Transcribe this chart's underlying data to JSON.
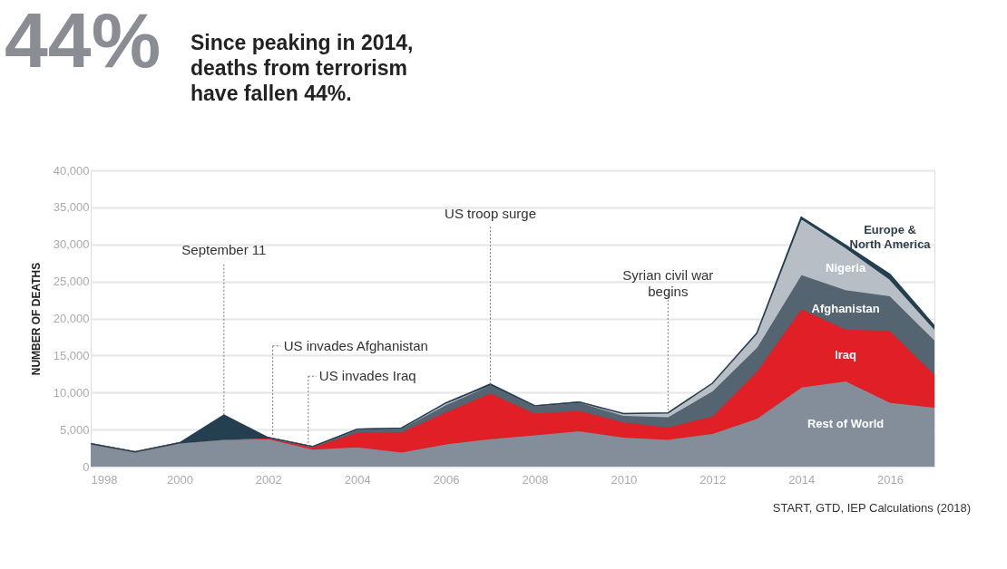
{
  "chart_data": {
    "type": "area",
    "stacked": true,
    "title": "44%",
    "subtitle": "Since peaking in 2014, deaths from terrorism have fallen 44%.",
    "ylabel": "NUMBER OF DEATHS",
    "x": [
      1998,
      1999,
      2000,
      2001,
      2002,
      2003,
      2004,
      2005,
      2006,
      2007,
      2008,
      2009,
      2010,
      2011,
      2012,
      2013,
      2014,
      2015,
      2016,
      2017
    ],
    "series": [
      {
        "name": "Rest of World",
        "color": "#838e9a",
        "values": [
          3100,
          2000,
          3200,
          3700,
          3800,
          2400,
          2700,
          2000,
          3100,
          3800,
          4300,
          4850,
          4000,
          3700,
          4500,
          6550,
          10750,
          11600,
          8700,
          8050
        ]
      },
      {
        "name": "Iraq",
        "color": "#e11f26",
        "values": [
          0,
          0,
          0,
          0,
          100,
          300,
          1950,
          2700,
          4300,
          6150,
          2950,
          2750,
          2050,
          1650,
          2350,
          6350,
          10600,
          7000,
          9700,
          4450
        ]
      },
      {
        "name": "Afghanistan",
        "color": "#546471",
        "values": [
          0,
          0,
          0,
          0,
          0,
          0,
          400,
          500,
          1000,
          1100,
          950,
          1100,
          900,
          1400,
          3400,
          3250,
          4600,
          5300,
          4700,
          4650
        ]
      },
      {
        "name": "Nigeria",
        "color": "#b8bec6",
        "values": [
          0,
          0,
          0,
          0,
          0,
          0,
          0,
          0,
          200,
          0,
          0,
          0,
          200,
          500,
          1000,
          1850,
          7550,
          5700,
          2200,
          1450
        ]
      },
      {
        "name": "Europe & North America",
        "color": "#243f4f",
        "values": [
          0,
          0,
          0,
          3250,
          0,
          0,
          0,
          0,
          0,
          100,
          0,
          0,
          0,
          0,
          0,
          0,
          200,
          300,
          650,
          400
        ]
      }
    ],
    "xlim": [
      1998,
      2017
    ],
    "xticks": [
      1998,
      2000,
      2002,
      2004,
      2006,
      2008,
      2010,
      2012,
      2014,
      2016
    ],
    "ylim": [
      0,
      40000
    ],
    "yticks": [
      {
        "value": 0,
        "label": "0"
      },
      {
        "value": 5000,
        "label": "5,000"
      },
      {
        "value": 10000,
        "label": "10,000"
      },
      {
        "value": 15000,
        "label": "15,000"
      },
      {
        "value": 20000,
        "label": "20,000"
      },
      {
        "value": 25000,
        "label": "25,000"
      },
      {
        "value": 30000,
        "label": "30,000"
      },
      {
        "value": 35000,
        "label": "35,000"
      },
      {
        "value": 40000,
        "label": "40,000"
      }
    ],
    "grid": "y",
    "annotations": [
      {
        "text": "September 11",
        "x": 2001,
        "y": 7000
      },
      {
        "text": "US invades Afghanistan",
        "x": 2002.1,
        "y": 4300
      },
      {
        "text": "US invades Iraq",
        "x": 2002.9,
        "y": 2700
      },
      {
        "text": "US troop surge",
        "x": 2007,
        "y": 11100
      },
      {
        "text": "Syrian civil war begins",
        "x": 2011,
        "y": 7600
      },
      "START, GTD, IEP Calculations (2018)"
    ]
  }
}
